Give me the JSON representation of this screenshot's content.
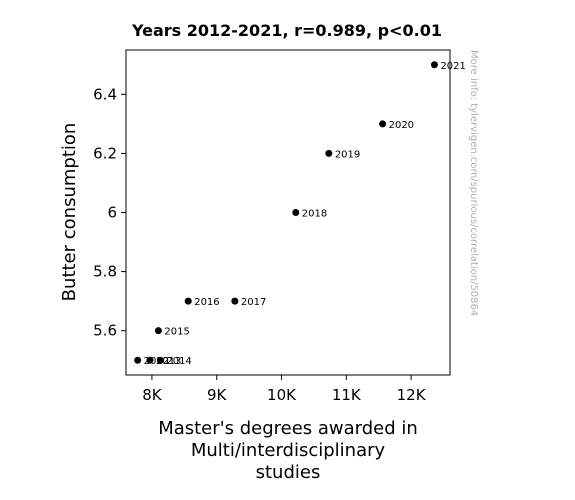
{
  "chart_data": {
    "type": "scatter",
    "title": "Years 2012-2021, r=0.989, p<0.01",
    "xlabel_lines": [
      "Master's degrees awarded in",
      "Multi/interdisciplinary",
      "studies"
    ],
    "ylabel": "Butter consumption",
    "xlim": [
      7600,
      12600
    ],
    "ylim": [
      5.45,
      6.55
    ],
    "x_ticks": [
      8000,
      9000,
      10000,
      11000,
      12000
    ],
    "x_tick_labels": [
      "8K",
      "9K",
      "10K",
      "11K",
      "12K"
    ],
    "y_ticks": [
      5.6,
      5.8,
      6.0,
      6.2,
      6.4
    ],
    "y_tick_labels": [
      "5.6",
      "5.8",
      "6",
      "6.2",
      "6.4"
    ],
    "grid": false,
    "point_color": "#000000",
    "points": [
      {
        "label": "2012",
        "x": 7780,
        "y": 5.5
      },
      {
        "label": "2013",
        "x": 7970,
        "y": 5.5
      },
      {
        "label": "2014",
        "x": 8130,
        "y": 5.5
      },
      {
        "label": "2015",
        "x": 8100,
        "y": 5.6
      },
      {
        "label": "2016",
        "x": 8560,
        "y": 5.7
      },
      {
        "label": "2017",
        "x": 9280,
        "y": 5.7
      },
      {
        "label": "2018",
        "x": 10220,
        "y": 6.0
      },
      {
        "label": "2019",
        "x": 10730,
        "y": 6.2
      },
      {
        "label": "2020",
        "x": 11560,
        "y": 6.3
      },
      {
        "label": "2021",
        "x": 12360,
        "y": 6.5
      }
    ]
  },
  "watermark": "More info: tylervigen.com/spurious/correlation/50864"
}
